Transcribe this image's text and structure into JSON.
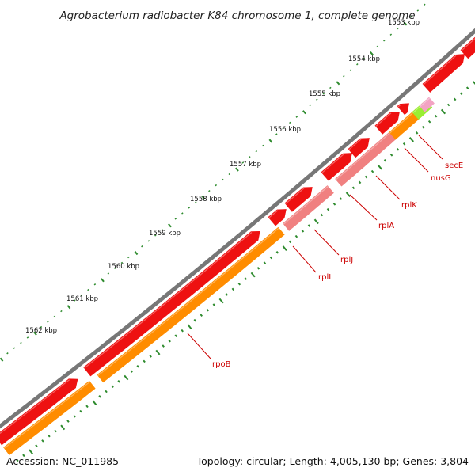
{
  "title": "Agrobacterium radiobacter K84 chromosome 1, complete genome",
  "footer": {
    "accession": "Accession: NC_011985",
    "topology": "Topology: circular; Length: 4,005,130 bp; Genes: 3,804"
  },
  "colors": {
    "backbone": "#777777",
    "tick": "#2e8b2e",
    "gene_red": "#ee1111",
    "gene_pink": "#f08080",
    "gene_orange": "#ff8c00",
    "gene_green": "#99ee33",
    "label": "#cc0000"
  },
  "ruler": {
    "labels": [
      "1553 kbp",
      "1554 kbp",
      "1555 kbp",
      "1556 kbp",
      "1557 kbp",
      "1558 kbp",
      "1559 kbp",
      "1560 kbp",
      "1561 kbp",
      "1562 kbp"
    ]
  },
  "genes": [
    {
      "name": "secE",
      "label": "secE"
    },
    {
      "name": "nusG",
      "label": "nusG"
    },
    {
      "name": "rplK",
      "label": "rplK"
    },
    {
      "name": "rplA",
      "label": "rplA"
    },
    {
      "name": "rplJ",
      "label": "rplJ"
    },
    {
      "name": "rplL",
      "label": "rplL"
    },
    {
      "name": "rpoB",
      "label": "rpoB"
    }
  ]
}
